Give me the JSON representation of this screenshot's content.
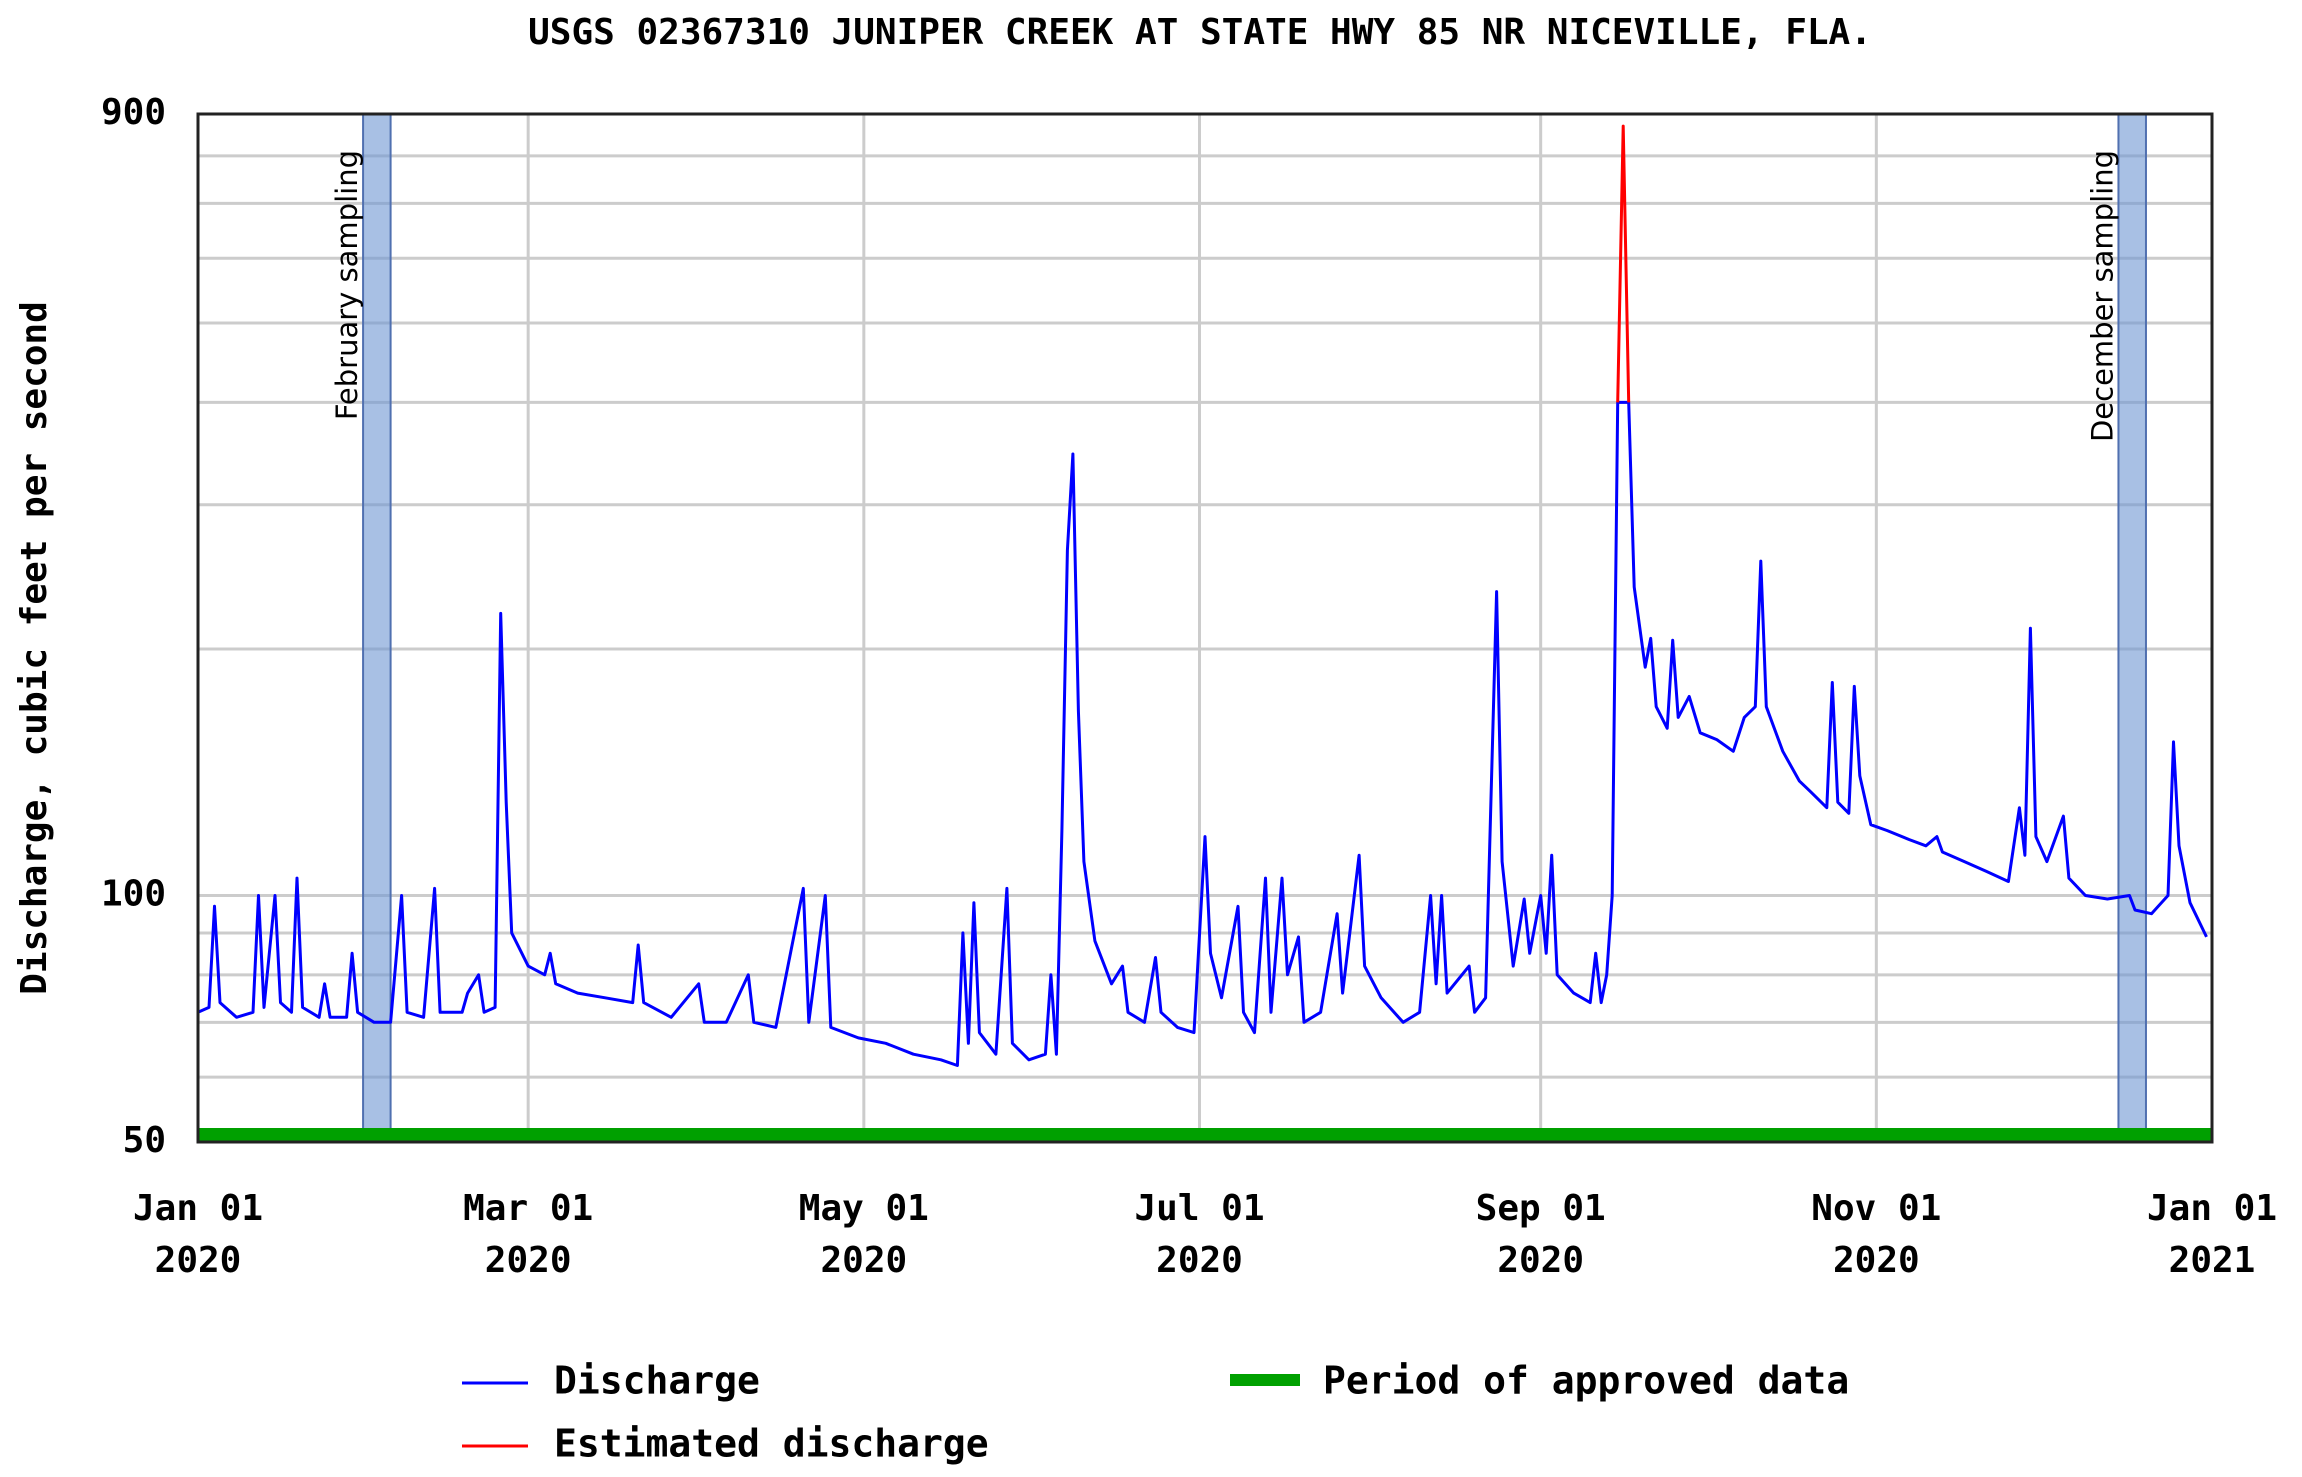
{
  "chart_data": {
    "type": "line",
    "title": "USGS 02367310 JUNIPER CREEK AT STATE HWY 85 NR NICEVILLE, FLA.",
    "y_label": "Discharge, cubic feet per second",
    "log_y": true,
    "grid": true,
    "xlim": [
      "2020-01-01",
      "2021-01-01"
    ],
    "xticks": [
      {
        "value": "2020-01-01",
        "label": "Jan 01\n2020"
      },
      {
        "value": "2020-03-01",
        "label": "Mar 01\n2020"
      },
      {
        "value": "2020-05-01",
        "label": "May 01\n2020"
      },
      {
        "value": "2020-07-01",
        "label": "Jul 01\n2020"
      },
      {
        "value": "2020-09-01",
        "label": "Sep 01\n2020"
      },
      {
        "value": "2020-11-01",
        "label": "Nov 01\n2020"
      },
      {
        "value": "2021-01-01",
        "label": "Jan 01\n2021"
      }
    ],
    "ylim": [
      50,
      900
    ],
    "yticks": [
      50,
      100,
      900
    ],
    "minor_yticks": [
      60,
      70,
      80,
      90,
      200,
      300,
      400,
      500,
      600,
      700,
      800
    ],
    "series": [
      {
        "name": "Discharge",
        "color": "#0000ff",
        "x": [
          "2020-01-01",
          "2020-01-03",
          "2020-01-04",
          "2020-01-05",
          "2020-01-08",
          "2020-01-11",
          "2020-01-12",
          "2020-01-13",
          "2020-01-15",
          "2020-01-16",
          "2020-01-18",
          "2020-01-19",
          "2020-01-20",
          "2020-01-23",
          "2020-01-24",
          "2020-01-25",
          "2020-01-28",
          "2020-01-29",
          "2020-01-30",
          "2020-02-02",
          "2020-02-05",
          "2020-02-07",
          "2020-02-08",
          "2020-02-11",
          "2020-02-13",
          "2020-02-14",
          "2020-02-18",
          "2020-02-19",
          "2020-02-21",
          "2020-02-22",
          "2020-02-24",
          "2020-02-25",
          "2020-02-26",
          "2020-02-27",
          "2020-03-01",
          "2020-03-04",
          "2020-03-05",
          "2020-03-06",
          "2020-03-10",
          "2020-03-15",
          "2020-03-20",
          "2020-03-21",
          "2020-03-22",
          "2020-03-27",
          "2020-04-01",
          "2020-04-02",
          "2020-04-06",
          "2020-04-10",
          "2020-04-11",
          "2020-04-15",
          "2020-04-20",
          "2020-04-21",
          "2020-04-24",
          "2020-04-25",
          "2020-04-30",
          "2020-05-05",
          "2020-05-10",
          "2020-05-15",
          "2020-05-18",
          "2020-05-19",
          "2020-05-20",
          "2020-05-21",
          "2020-05-22",
          "2020-05-25",
          "2020-05-27",
          "2020-05-28",
          "2020-05-31",
          "2020-06-03",
          "2020-06-04",
          "2020-06-05",
          "2020-06-06",
          "2020-06-07",
          "2020-06-08",
          "2020-06-09",
          "2020-06-10",
          "2020-06-12",
          "2020-06-15",
          "2020-06-17",
          "2020-06-18",
          "2020-06-21",
          "2020-06-23",
          "2020-06-24",
          "2020-06-27",
          "2020-06-30",
          "2020-07-02",
          "2020-07-03",
          "2020-07-05",
          "2020-07-08",
          "2020-07-09",
          "2020-07-11",
          "2020-07-13",
          "2020-07-14",
          "2020-07-16",
          "2020-07-17",
          "2020-07-19",
          "2020-07-20",
          "2020-07-23",
          "2020-07-26",
          "2020-07-27",
          "2020-07-30",
          "2020-07-31",
          "2020-08-03",
          "2020-08-07",
          "2020-08-10",
          "2020-08-12",
          "2020-08-13",
          "2020-08-14",
          "2020-08-15",
          "2020-08-19",
          "2020-08-20",
          "2020-08-22",
          "2020-08-24",
          "2020-08-25",
          "2020-08-27",
          "2020-08-29",
          "2020-08-30",
          "2020-09-01",
          "2020-09-02",
          "2020-09-03",
          "2020-09-04",
          "2020-09-07",
          "2020-09-10",
          "2020-09-11",
          "2020-09-12",
          "2020-09-13",
          "2020-09-14",
          "2020-09-15",
          "2020-09-17",
          "2020-09-18",
          "2020-09-20",
          "2020-09-21",
          "2020-09-22",
          "2020-09-24",
          "2020-09-25",
          "2020-09-26",
          "2020-09-28",
          "2020-09-30",
          "2020-10-03",
          "2020-10-06",
          "2020-10-08",
          "2020-10-10",
          "2020-10-11",
          "2020-10-12",
          "2020-10-15",
          "2020-10-18",
          "2020-10-20",
          "2020-10-23",
          "2020-10-24",
          "2020-10-25",
          "2020-10-27",
          "2020-10-28",
          "2020-10-29",
          "2020-10-31",
          "2020-11-03",
          "2020-11-07",
          "2020-11-10",
          "2020-11-12",
          "2020-11-13",
          "2020-11-17",
          "2020-11-21",
          "2020-11-25",
          "2020-11-27",
          "2020-11-28",
          "2020-11-29",
          "2020-11-30",
          "2020-12-02",
          "2020-12-05",
          "2020-12-06",
          "2020-12-09",
          "2020-12-13",
          "2020-12-17",
          "2020-12-18",
          "2020-12-21",
          "2020-12-24",
          "2020-12-25",
          "2020-12-26",
          "2020-12-28",
          "2020-12-31"
        ],
        "values": [
          72,
          73,
          97,
          74,
          71,
          72,
          100,
          73,
          100,
          74,
          72,
          105,
          73,
          71,
          78,
          71,
          71,
          85,
          72,
          70,
          70,
          100,
          72,
          71,
          102,
          72,
          72,
          76,
          80,
          72,
          73,
          221,
          130,
          90,
          82,
          80,
          85,
          78,
          76,
          75,
          74,
          87,
          74,
          71,
          78,
          70,
          70,
          80,
          70,
          69,
          102,
          70,
          100,
          69,
          67,
          66,
          64,
          63,
          62,
          90,
          66,
          98,
          68,
          64,
          102,
          66,
          63,
          64,
          80,
          64,
          120,
          264,
          346,
          168,
          110,
          88,
          78,
          82,
          72,
          70,
          84,
          72,
          69,
          68,
          118,
          85,
          75,
          97,
          72,
          68,
          105,
          72,
          105,
          80,
          89,
          70,
          72,
          95,
          76,
          112,
          82,
          75,
          70,
          72,
          100,
          78,
          100,
          76,
          82,
          72,
          75,
          235,
          110,
          82,
          99,
          85,
          100,
          85,
          112,
          80,
          76,
          74,
          85,
          74,
          80,
          100,
          400,
          400,
          238,
          190,
          206,
          170,
          160,
          205,
          165,
          175,
          158,
          155,
          150,
          165,
          170,
          256,
          170,
          150,
          138,
          134,
          128,
          182,
          130,
          126,
          180,
          140,
          122,
          120,
          117,
          115,
          118,
          113,
          110,
          107,
          104,
          128,
          112,
          212,
          118,
          110,
          125,
          105,
          100,
          99,
          100,
          96,
          95,
          100,
          154,
          115,
          98,
          89
        ]
      },
      {
        "name": "Estimated discharge",
        "color": "#ff0000",
        "x": [
          "2020-09-15",
          "2020-09-16",
          "2020-09-17"
        ],
        "values": [
          400,
          870,
          400
        ]
      }
    ],
    "approved": {
      "name": "Period of approved data",
      "color": "#00a000",
      "x": [
        "2020-01-01",
        "2021-01-01"
      ]
    },
    "annotations": [
      {
        "text": "February sampling",
        "x": [
          "2020-01-31",
          "2020-02-05"
        ]
      },
      {
        "text": "December sampling",
        "x": [
          "2020-12-15",
          "2020-12-20"
        ]
      }
    ]
  }
}
